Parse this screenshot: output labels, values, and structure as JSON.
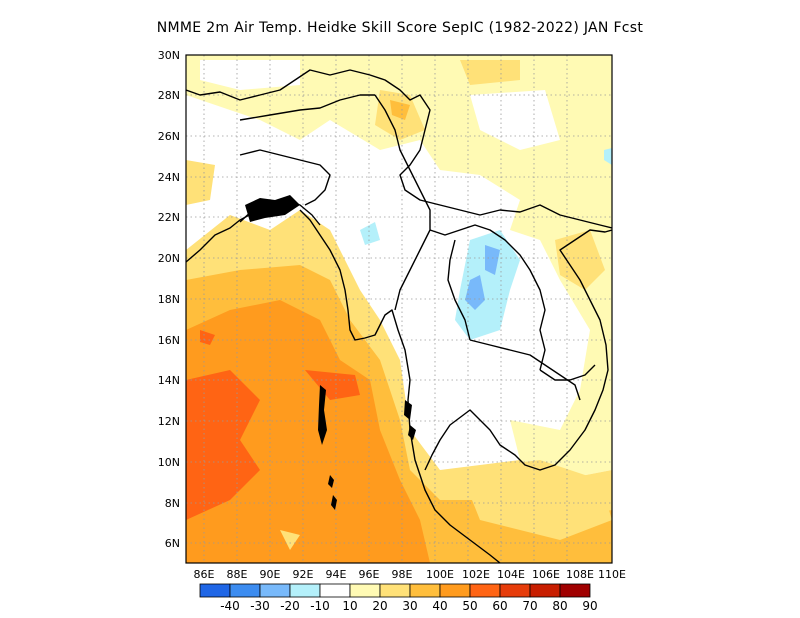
{
  "title": "NMME  2m Air Temp. Heidke Skill Score SepIC (1982-2022) JAN Fcst",
  "lat_labels": [
    "30N",
    "28N",
    "26N",
    "24N",
    "22N",
    "20N",
    "18N",
    "16N",
    "14N",
    "12N",
    "10N",
    "8N",
    "6N"
  ],
  "lon_labels": [
    "86E",
    "88E",
    "90E",
    "92E",
    "94E",
    "96E",
    "98E",
    "100E",
    "102E",
    "104E",
    "106E",
    "108E",
    "110E"
  ],
  "colorbar": {
    "labels": [
      "-40",
      "-30",
      "-20",
      "-10",
      "10",
      "20",
      "30",
      "40",
      "50",
      "60",
      "70",
      "80",
      "90"
    ],
    "colors": [
      "#1f66e6",
      "#3c8cf0",
      "#78b9fa",
      "#b4f0fa",
      "#ffffff",
      "#fffab4",
      "#ffe178",
      "#ffbe3c",
      "#ff9b1e",
      "#ff6414",
      "#e63c0a",
      "#c81e00",
      "#a00000"
    ]
  },
  "map": {
    "land_outline_color": "#000000",
    "background": "#ffffff"
  }
}
